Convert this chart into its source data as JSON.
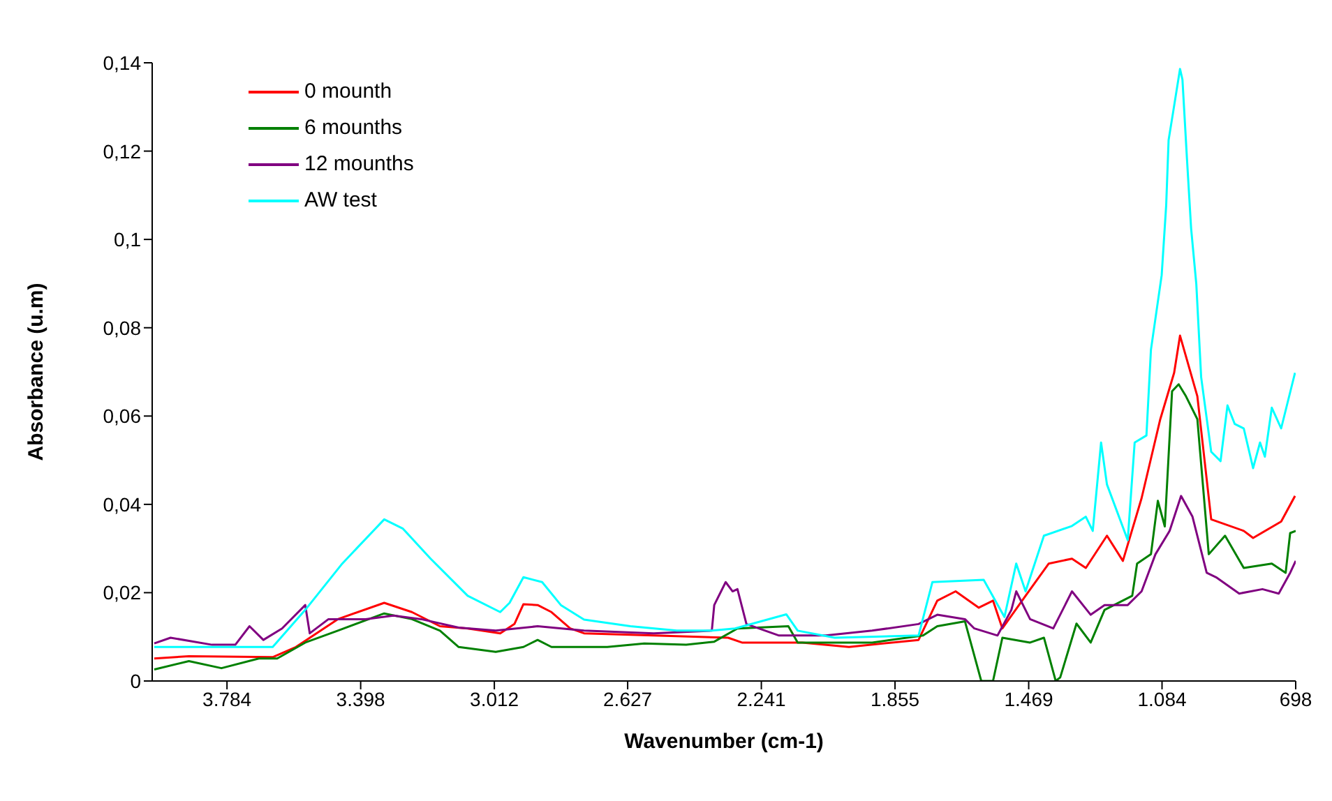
{
  "chart_data": {
    "type": "line",
    "xlabel": "Wavenumber (cm-1)",
    "ylabel": "Absorbance (u.m)",
    "xlim": [
      4000,
      698
    ],
    "xticks": [
      {
        "value": 3784,
        "label": "3.784"
      },
      {
        "value": 3398,
        "label": "3.398"
      },
      {
        "value": 3012,
        "label": "3.012"
      },
      {
        "value": 2627,
        "label": "2.627"
      },
      {
        "value": 2241,
        "label": "2.241"
      },
      {
        "value": 1855,
        "label": "1.855"
      },
      {
        "value": 1469,
        "label": "1.469"
      },
      {
        "value": 1084,
        "label": "1.084"
      },
      698
    ],
    "ylim": [
      0,
      0.14
    ],
    "yticks": [
      0,
      {
        "value": 0.02,
        "label": "0,02"
      },
      {
        "value": 0.04,
        "label": "0,04"
      },
      {
        "value": 0.06,
        "label": "0,06"
      },
      {
        "value": 0.08,
        "label": "0,08"
      },
      {
        "value": 0.1,
        "label": "0,1"
      },
      {
        "value": 0.12,
        "label": "0,12"
      },
      {
        "value": 0.14,
        "label": "0,14"
      }
    ],
    "grid": false,
    "legend": "top left",
    "marker": "none",
    "line_style": "solid",
    "series": [
      {
        "name": "0 mounth",
        "color": "#ff0000",
        "x": [
          3994,
          3894,
          3652,
          3585,
          3464,
          3330,
          3250,
          3169,
          3089,
          2995,
          2954,
          2928,
          2887,
          2847,
          2793,
          2753,
          2552,
          2337,
          2297,
          2123,
          1988,
          1787,
          1733,
          1680,
          1613,
          1572,
          1545,
          1478,
          1411,
          1344,
          1304,
          1243,
          1197,
          1143,
          1089,
          1049,
          1032,
          982,
          942,
          848,
          821,
          740,
          700
        ],
        "values": [
          0.0051,
          0.0056,
          0.0054,
          0.0077,
          0.014,
          0.0177,
          0.0156,
          0.0124,
          0.0119,
          0.0108,
          0.0129,
          0.0174,
          0.0172,
          0.0156,
          0.0119,
          0.0108,
          0.0103,
          0.0098,
          0.0087,
          0.0087,
          0.0077,
          0.0093,
          0.0182,
          0.0203,
          0.0166,
          0.0182,
          0.0119,
          0.0193,
          0.0266,
          0.0277,
          0.0256,
          0.0329,
          0.0272,
          0.0414,
          0.0593,
          0.0698,
          0.0782,
          0.0645,
          0.0366,
          0.034,
          0.0324,
          0.0361,
          0.0419
        ]
      },
      {
        "name": "6 mounths",
        "color": "#008000",
        "x": [
          3994,
          3894,
          3800,
          3692,
          3639,
          3558,
          3464,
          3330,
          3250,
          3169,
          3115,
          3008,
          2928,
          2887,
          2847,
          2686,
          2579,
          2458,
          2377,
          2310,
          2163,
          2136,
          1921,
          1774,
          1733,
          1653,
          1606,
          1572,
          1545,
          1465,
          1425,
          1391,
          1378,
          1331,
          1290,
          1250,
          1170,
          1156,
          1116,
          1096,
          1076,
          1055,
          1036,
          1015,
          982,
          949,
          902,
          848,
          767,
          727,
          714,
          698
        ],
        "values": [
          0.0026,
          0.0045,
          0.0029,
          0.0051,
          0.0051,
          0.0087,
          0.0114,
          0.0153,
          0.014,
          0.0114,
          0.0077,
          0.0066,
          0.0077,
          0.0093,
          0.0077,
          0.0077,
          0.0085,
          0.0082,
          0.0089,
          0.0119,
          0.0124,
          0.0087,
          0.0087,
          0.0103,
          0.0124,
          0.0135,
          0,
          0,
          0.0098,
          0.0087,
          0.0098,
          0,
          0.0008,
          0.013,
          0.0087,
          0.0161,
          0.0193,
          0.0266,
          0.0287,
          0.0408,
          0.035,
          0.0656,
          0.0672,
          0.0645,
          0.0593,
          0.0287,
          0.0329,
          0.0256,
          0.0266,
          0.0245,
          0.0335,
          0.034
        ]
      },
      {
        "name": "12 mounths",
        "color": "#800080",
        "x": [
          3994,
          3947,
          3827,
          3760,
          3719,
          3679,
          3625,
          3558,
          3545,
          3491,
          3384,
          3303,
          3223,
          3115,
          3008,
          2887,
          2753,
          2552,
          2384,
          2377,
          2344,
          2324,
          2310,
          2284,
          2190,
          2055,
          1921,
          1787,
          1733,
          1653,
          1626,
          1559,
          1519,
          1505,
          1465,
          1398,
          1344,
          1290,
          1250,
          1183,
          1143,
          1103,
          1062,
          1029,
          996,
          955,
          928,
          861,
          794,
          747,
          714,
          698
        ],
        "values": [
          0.0085,
          0.0098,
          0.0082,
          0.0082,
          0.0124,
          0.0093,
          0.0119,
          0.0172,
          0.0108,
          0.014,
          0.014,
          0.0148,
          0.014,
          0.0121,
          0.0114,
          0.0124,
          0.0114,
          0.0108,
          0.0114,
          0.0172,
          0.0224,
          0.0203,
          0.0208,
          0.0129,
          0.0103,
          0.0103,
          0.0114,
          0.0129,
          0.015,
          0.014,
          0.0119,
          0.0103,
          0.0161,
          0.0203,
          0.014,
          0.0119,
          0.0203,
          0.015,
          0.0172,
          0.0172,
          0.0203,
          0.0287,
          0.034,
          0.0419,
          0.0372,
          0.0245,
          0.0235,
          0.0198,
          0.0208,
          0.0198,
          0.0245,
          0.0272
        ]
      },
      {
        "name": "AW test",
        "color": "#00ffff",
        "x": [
          3994,
          3652,
          3558,
          3451,
          3330,
          3276,
          3196,
          3089,
          2995,
          2968,
          2928,
          2874,
          2820,
          2753,
          2619,
          2485,
          2384,
          2317,
          2169,
          2136,
          2029,
          1787,
          1747,
          1599,
          1539,
          1505,
          1478,
          1425,
          1344,
          1304,
          1284,
          1260,
          1243,
          1183,
          1163,
          1129,
          1116,
          1085,
          1072,
          1065,
          1052,
          1032,
          1025,
          1012,
          1000,
          985,
          971,
          942,
          915,
          895,
          874,
          848,
          821,
          801,
          787,
          767,
          740,
          700
        ],
        "values": [
          0.0077,
          0.0077,
          0.0161,
          0.0266,
          0.0366,
          0.0345,
          0.0277,
          0.0193,
          0.0156,
          0.0177,
          0.0235,
          0.0224,
          0.0172,
          0.0139,
          0.0124,
          0.0114,
          0.0114,
          0.0119,
          0.0151,
          0.0114,
          0.0098,
          0.0103,
          0.0224,
          0.0229,
          0.0145,
          0.0266,
          0.0203,
          0.0329,
          0.0351,
          0.0372,
          0.034,
          0.054,
          0.0445,
          0.0319,
          0.054,
          0.0556,
          0.075,
          0.0919,
          0.1077,
          0.1225,
          0.1288,
          0.1386,
          0.1362,
          0.1183,
          0.1025,
          0.0899,
          0.0688,
          0.0519,
          0.0498,
          0.0624,
          0.0582,
          0.0572,
          0.0482,
          0.054,
          0.0508,
          0.0619,
          0.0572,
          0.0698
        ]
      }
    ]
  }
}
